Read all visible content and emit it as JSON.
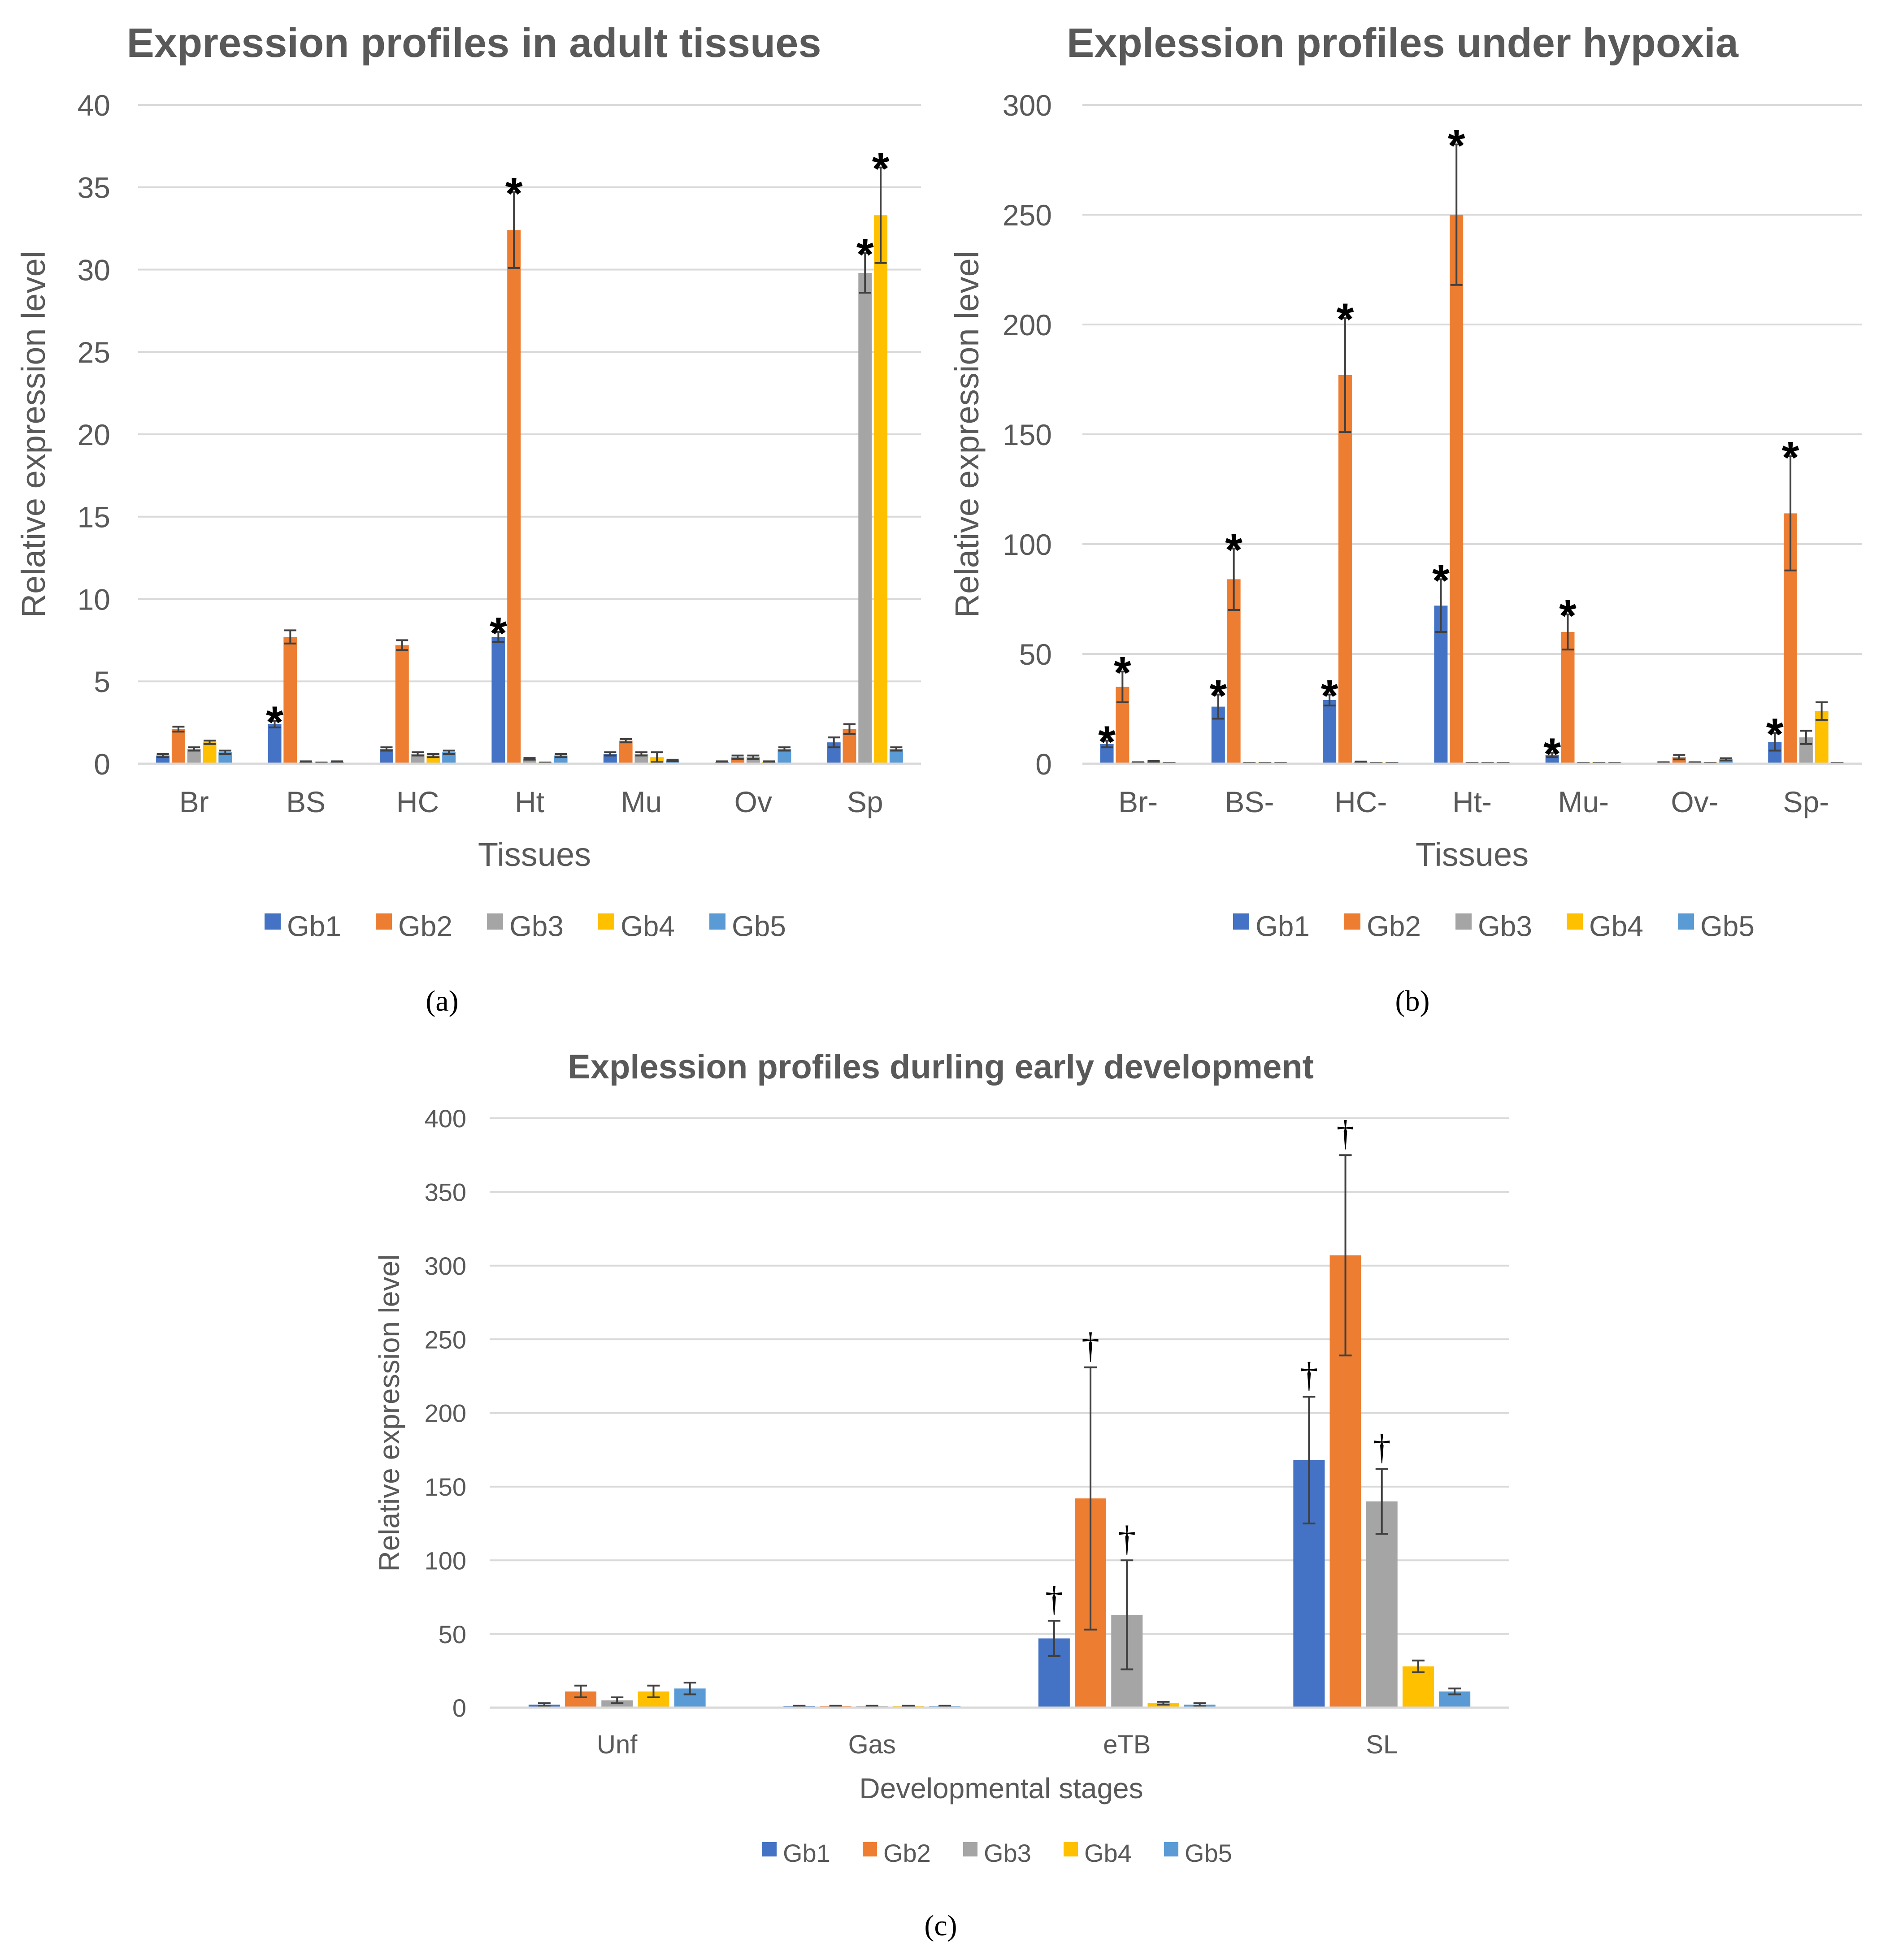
{
  "series_names": [
    "Gb1",
    "Gb2",
    "Gb3",
    "Gb4",
    "Gb5"
  ],
  "colors": {
    "Gb1": "#4472c4",
    "Gb2": "#ed7d31",
    "Gb3": "#a5a5a5",
    "Gb4": "#ffc000",
    "Gb5": "#5b9bd5",
    "text": "#595959",
    "grid": "#d9d9d9",
    "errorbar": "#404040",
    "marker": "#000000"
  },
  "chart_data": [
    {
      "id": "a",
      "type": "bar",
      "panel_label": "(a)",
      "title": "Expression profiles in adult tissues",
      "xlabel": "Tissues",
      "ylabel": "Relative expression level",
      "ylim": [
        0,
        40
      ],
      "yticks": [
        "0",
        "5",
        "10",
        "15",
        "20",
        "25",
        "30",
        "35",
        "40"
      ],
      "grid": true,
      "legend_position": "bottom",
      "categories": [
        "Br",
        "BS",
        "HC",
        "Ht",
        "Mu",
        "Ov",
        "Sp"
      ],
      "series": [
        {
          "name": "Gb1",
          "values": [
            0.5,
            2.4,
            0.9,
            7.7,
            0.6,
            0.1,
            1.3
          ],
          "errors": [
            0.1,
            0.2,
            0.1,
            0.3,
            0.1,
            0.05,
            0.3
          ]
        },
        {
          "name": "Gb2",
          "values": [
            2.1,
            7.7,
            7.2,
            32.4,
            1.4,
            0.4,
            2.1
          ],
          "errors": [
            0.15,
            0.4,
            0.3,
            2.3,
            0.1,
            0.1,
            0.3
          ]
        },
        {
          "name": "Gb3",
          "values": [
            0.9,
            0.1,
            0.6,
            0.3,
            0.6,
            0.4,
            29.8
          ],
          "errors": [
            0.1,
            0.05,
            0.1,
            0.05,
            0.1,
            0.1,
            1.2
          ]
        },
        {
          "name": "Gb4",
          "values": [
            1.3,
            0.05,
            0.5,
            0.05,
            0.4,
            0.1,
            33.3
          ],
          "errors": [
            0.1,
            0.02,
            0.1,
            0.02,
            0.3,
            0.05,
            2.9
          ]
        },
        {
          "name": "Gb5",
          "values": [
            0.7,
            0.1,
            0.7,
            0.5,
            0.2,
            0.9,
            0.9
          ],
          "errors": [
            0.1,
            0.05,
            0.1,
            0.1,
            0.05,
            0.1,
            0.1
          ]
        }
      ],
      "markers": [
        {
          "series": "Gb1",
          "category": "BS",
          "symbol": "*"
        },
        {
          "series": "Gb1",
          "category": "Ht",
          "symbol": "*"
        },
        {
          "series": "Gb2",
          "category": "Ht",
          "symbol": "*"
        },
        {
          "series": "Gb3",
          "category": "Sp",
          "symbol": "*"
        },
        {
          "series": "Gb4",
          "category": "Sp",
          "symbol": "*"
        }
      ]
    },
    {
      "id": "b",
      "type": "bar",
      "panel_label": "(b)",
      "title": "Explession profiles under hypoxia",
      "xlabel": "Tissues",
      "ylabel": "Relative expression level",
      "ylim": [
        0,
        300
      ],
      "yticks": [
        "0",
        "50",
        "100",
        "150",
        "200",
        "250",
        "300"
      ],
      "grid": true,
      "legend_position": "bottom",
      "categories": [
        "Br-",
        "BS-",
        "HC-",
        "Ht-",
        "Mu-",
        "Ov-",
        "Sp-"
      ],
      "series": [
        {
          "name": "Gb1",
          "values": [
            9,
            26,
            29,
            72,
            4,
            0.5,
            10
          ],
          "errors": [
            1.5,
            5.5,
            2.5,
            12,
            1,
            0.2,
            4
          ]
        },
        {
          "name": "Gb2",
          "values": [
            35,
            84,
            177,
            250,
            60,
            3,
            114
          ],
          "errors": [
            7,
            14,
            26,
            32,
            8,
            1,
            26
          ]
        },
        {
          "name": "Gb3",
          "values": [
            0.5,
            0.3,
            0.8,
            0.3,
            0.3,
            0.5,
            12
          ],
          "errors": [
            0.2,
            0.1,
            0.2,
            0.1,
            0.1,
            0.2,
            3
          ]
        },
        {
          "name": "Gb4",
          "values": [
            1,
            0.3,
            0.3,
            0.3,
            0.3,
            0.3,
            24
          ],
          "errors": [
            0.3,
            0.1,
            0.1,
            0.1,
            0.1,
            0.1,
            4
          ]
        },
        {
          "name": "Gb5",
          "values": [
            0.3,
            0.3,
            0.3,
            0.3,
            0.3,
            2,
            0.3
          ],
          "errors": [
            0.1,
            0.1,
            0.1,
            0.1,
            0.1,
            0.5,
            0.1
          ]
        }
      ],
      "markers": [
        {
          "series": "Gb1",
          "category": "Br-",
          "symbol": "*"
        },
        {
          "series": "Gb2",
          "category": "Br-",
          "symbol": "*"
        },
        {
          "series": "Gb1",
          "category": "BS-",
          "symbol": "*"
        },
        {
          "series": "Gb2",
          "category": "BS-",
          "symbol": "*"
        },
        {
          "series": "Gb1",
          "category": "HC-",
          "symbol": "*"
        },
        {
          "series": "Gb2",
          "category": "HC-",
          "symbol": "*"
        },
        {
          "series": "Gb1",
          "category": "Ht-",
          "symbol": "*"
        },
        {
          "series": "Gb2",
          "category": "Ht-",
          "symbol": "*"
        },
        {
          "series": "Gb1",
          "category": "Mu-",
          "symbol": "*"
        },
        {
          "series": "Gb2",
          "category": "Mu-",
          "symbol": "*"
        },
        {
          "series": "Gb1",
          "category": "Sp-",
          "symbol": "*"
        },
        {
          "series": "Gb2",
          "category": "Sp-",
          "symbol": "*"
        }
      ]
    },
    {
      "id": "c",
      "type": "bar",
      "panel_label": "(c)",
      "title": "Explession profiles  durling early development",
      "xlabel": "Developmental stages",
      "ylabel": "Relative expression level",
      "ylim": [
        0,
        400
      ],
      "yticks": [
        "0",
        "50",
        "100",
        "150",
        "200",
        "250",
        "300",
        "350",
        "400"
      ],
      "grid": true,
      "legend_position": "bottom",
      "categories": [
        "Unf",
        "Gas",
        "eTB",
        "SL"
      ],
      "series": [
        {
          "name": "Gb1",
          "values": [
            2,
            1,
            47,
            168
          ],
          "errors": [
            1,
            0.3,
            12,
            43
          ]
        },
        {
          "name": "Gb2",
          "values": [
            11,
            1,
            142,
            307
          ],
          "errors": [
            4,
            0.3,
            89,
            68
          ]
        },
        {
          "name": "Gb3",
          "values": [
            5,
            1,
            63,
            140
          ],
          "errors": [
            2,
            0.3,
            37,
            22
          ]
        },
        {
          "name": "Gb4",
          "values": [
            11,
            1,
            3,
            28
          ],
          "errors": [
            4,
            0.3,
            1,
            4
          ]
        },
        {
          "name": "Gb5",
          "values": [
            13,
            1,
            2,
            11
          ],
          "errors": [
            4,
            0.3,
            1,
            2
          ]
        }
      ],
      "markers": [
        {
          "series": "Gb1",
          "category": "eTB",
          "symbol": "†"
        },
        {
          "series": "Gb2",
          "category": "eTB",
          "symbol": "†"
        },
        {
          "series": "Gb3",
          "category": "eTB",
          "symbol": "†"
        },
        {
          "series": "Gb1",
          "category": "SL",
          "symbol": "†"
        },
        {
          "series": "Gb2",
          "category": "SL",
          "symbol": "†"
        },
        {
          "series": "Gb3",
          "category": "SL",
          "symbol": "†"
        }
      ]
    }
  ]
}
